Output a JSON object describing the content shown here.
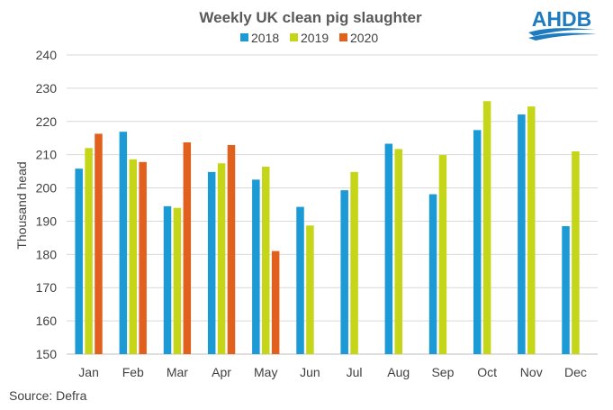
{
  "logo_text": "AHDB",
  "source": "Source: Defra",
  "colors": {
    "series_2018": "#1b9ad6",
    "series_2019": "#c5d619",
    "series_2020": "#e2601d",
    "gridline": "#d9d9d9",
    "logo": "#1e7bc0"
  },
  "chart_data": {
    "type": "bar",
    "title": "Weekly UK clean pig slaughter",
    "ylabel": "Thousand  head",
    "xlabel": "",
    "ylim": [
      150,
      240
    ],
    "yticks": [
      150,
      160,
      170,
      180,
      190,
      200,
      210,
      220,
      230,
      240
    ],
    "grid": true,
    "legend_position": "top",
    "categories": [
      "Jan",
      "Feb",
      "Mar",
      "Apr",
      "May",
      "Jun",
      "Jul",
      "Aug",
      "Sep",
      "Oct",
      "Nov",
      "Dec"
    ],
    "series": [
      {
        "name": "2018",
        "color": "#1b9ad6",
        "values": [
          205.8,
          216.9,
          194.5,
          204.8,
          202.5,
          194.3,
          199.3,
          213.3,
          198.1,
          217.4,
          222.1,
          188.5
        ]
      },
      {
        "name": "2019",
        "color": "#c5d619",
        "values": [
          212.0,
          208.6,
          194.0,
          207.4,
          206.4,
          188.7,
          204.8,
          211.7,
          209.9,
          226.1,
          224.5,
          211.0
        ]
      },
      {
        "name": "2020",
        "color": "#e2601d",
        "values": [
          216.3,
          207.8,
          213.7,
          212.9,
          181.0,
          null,
          null,
          null,
          null,
          null,
          null,
          null
        ]
      }
    ]
  }
}
